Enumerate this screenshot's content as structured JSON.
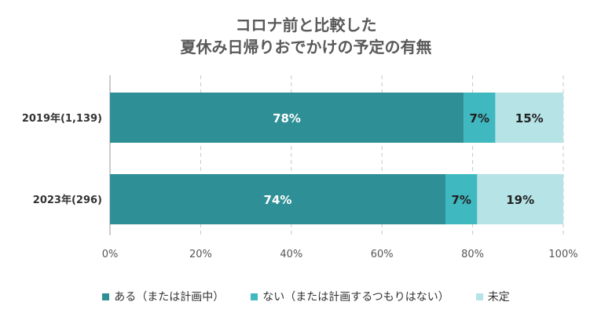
{
  "chart_data": {
    "type": "bar",
    "orientation": "horizontal",
    "stacked": true,
    "title": [
      "コロナ前と比較した",
      "夏休み日帰りおでかけの予定の有無"
    ],
    "categories": [
      "2019年(1,139)",
      "2023年(296)"
    ],
    "series": [
      {
        "name": "ある（または計画中）",
        "values": [
          78,
          74
        ],
        "labels": [
          "78%",
          "74%"
        ],
        "color": "#2f8f96"
      },
      {
        "name": "ない（または計画するつもりはない）",
        "values": [
          7,
          7
        ],
        "labels": [
          "7%",
          "7%"
        ],
        "color": "#3fb8c0"
      },
      {
        "name": "未定",
        "values": [
          15,
          19
        ],
        "labels": [
          "15%",
          "19%"
        ],
        "color": "#b6e3e6"
      }
    ],
    "xlim": [
      0,
      100
    ],
    "xticks": [
      "0%",
      "20%",
      "40%",
      "60%",
      "80%",
      "100%"
    ],
    "grid": "vertical dashed",
    "legend_position": "bottom"
  }
}
